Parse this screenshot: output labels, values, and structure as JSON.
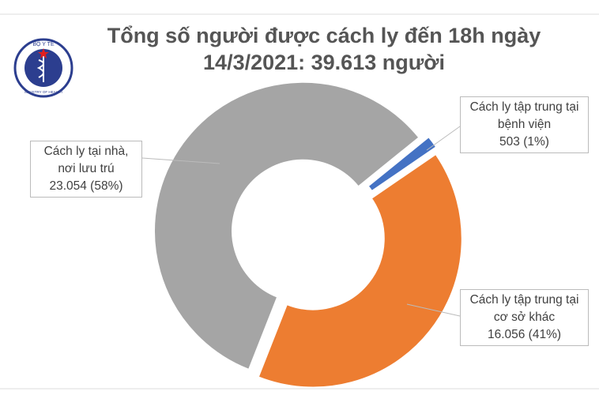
{
  "chart_data": {
    "type": "donut",
    "title": "Tổng số người được cách ly đến 18h ngày 14/3/2021: 39.613 người",
    "categories": [
      "Cách ly tập trung tại bệnh viện",
      "Cách ly tập trung tại cơ sở khác",
      "Cách ly tại nhà, nơi lưu trú"
    ],
    "values": [
      503,
      16056,
      23054
    ],
    "value_labels": [
      "503 (1%)",
      "16.056 (41%)",
      "23.054 (58%)"
    ],
    "colors": [
      "#4472c4",
      "#ed7d31",
      "#a5a5a5"
    ]
  },
  "logo": {
    "top_text": "BỘ Y TẾ",
    "bottom_text": "MINISTRY OF HEALTH"
  }
}
